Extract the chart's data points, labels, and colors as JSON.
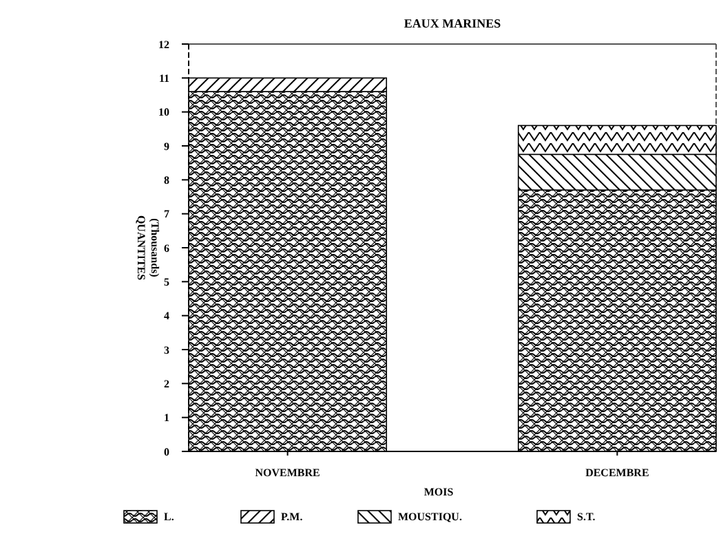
{
  "chart_data": {
    "type": "bar",
    "title": "EAUX MARINES",
    "xlabel": "MOIS",
    "ylabel": "QUANTITES\n(Thousands)",
    "categories": [
      "NOVEMBRE",
      "DECEMBRE"
    ],
    "stacked": true,
    "series": [
      {
        "name": "L.",
        "color": "#000000",
        "values": [
          10.6,
          7.7
        ]
      },
      {
        "name": "P.M.",
        "color": "#000000",
        "values": [
          0.4,
          0
        ]
      },
      {
        "name": "MOUSTIQU.",
        "color": "#000000",
        "values": [
          0,
          1.05
        ]
      },
      {
        "name": "S.T.",
        "color": "#000000",
        "values": [
          0,
          0.85
        ]
      }
    ],
    "ylim": [
      0,
      12
    ],
    "yticks": [
      0,
      1,
      2,
      3,
      4,
      5,
      6,
      7,
      8,
      9,
      10,
      11,
      12
    ],
    "grid": false,
    "legend": "bottom"
  }
}
